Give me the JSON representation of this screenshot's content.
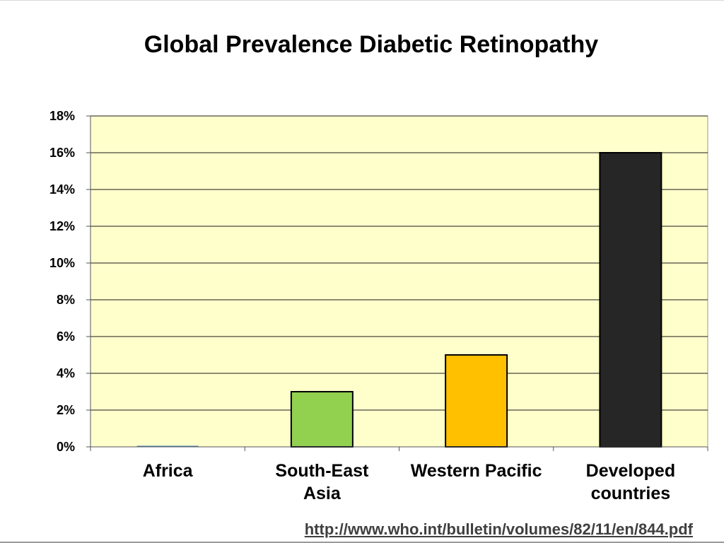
{
  "title": "Global Prevalence Diabetic Retinopathy",
  "source_link": "http://www.who.int/bulletin/volumes/82/11/en/844.pdf",
  "chart_data": {
    "type": "bar",
    "title": "Global Prevalence Diabetic Retinopathy",
    "xlabel": "",
    "ylabel": "",
    "categories": [
      "Africa",
      "South-East Asia",
      "Western Pacific",
      "Developed countries"
    ],
    "category_lines": [
      [
        "Africa"
      ],
      [
        "South-East",
        "Asia"
      ],
      [
        "Western Pacific"
      ],
      [
        "Developed",
        "countries"
      ]
    ],
    "values": [
      0,
      3,
      5,
      16
    ],
    "bar_colors": [
      "#4f81bd",
      "#92d050",
      "#ffc000",
      "#262626"
    ],
    "ylim": [
      0,
      18
    ],
    "yticks": [
      0,
      2,
      4,
      6,
      8,
      10,
      12,
      14,
      16,
      18
    ],
    "ytick_labels": [
      "0%",
      "2%",
      "4%",
      "6%",
      "8%",
      "10%",
      "12%",
      "14%",
      "16%",
      "18%"
    ],
    "plot_background": "#ffffcc",
    "grid": true,
    "legend": "none"
  }
}
